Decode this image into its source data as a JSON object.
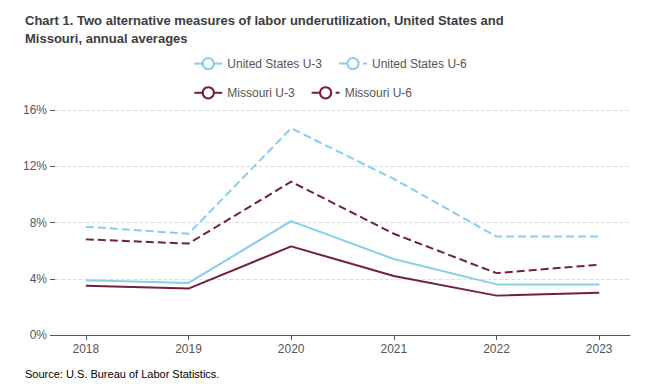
{
  "chart_data": {
    "type": "line",
    "title": "Chart 1. Two alternative measures of labor underutilization, United States and\nMissouri, annual averages",
    "source": "Source: U.S. Bureau of Labor Statistics.",
    "x": [
      2018,
      2019,
      2020,
      2021,
      2022,
      2023
    ],
    "xlim": [
      2017.7,
      2023.3
    ],
    "xticks": [
      2018,
      2019,
      2020,
      2021,
      2022,
      2023
    ],
    "ylim": [
      0,
      16
    ],
    "yticks": [
      {
        "value": 0,
        "label": "0%"
      },
      {
        "value": 4,
        "label": "4%"
      },
      {
        "value": 8,
        "label": "8%"
      },
      {
        "value": 12,
        "label": "12%"
      },
      {
        "value": 16,
        "label": "16%"
      }
    ],
    "grid": true,
    "legend": "top",
    "series": [
      {
        "name": "United States U-3",
        "color": "#87CEEB",
        "line_style": "solid",
        "values": [
          3.9,
          3.7,
          8.1,
          5.4,
          3.6,
          3.6
        ]
      },
      {
        "name": "United States U-6",
        "color": "#87CEEB",
        "line_style": "dashed",
        "values": [
          7.7,
          7.2,
          14.7,
          11.1,
          7.0,
          7.0
        ]
      },
      {
        "name": "Missouri U-3",
        "color": "#722040",
        "line_style": "solid",
        "values": [
          3.5,
          3.3,
          6.3,
          4.2,
          2.8,
          3.0
        ]
      },
      {
        "name": "Missouri U-6",
        "color": "#722040",
        "line_style": "dashed",
        "values": [
          6.8,
          6.5,
          10.9,
          7.2,
          4.4,
          5.0
        ]
      }
    ]
  }
}
